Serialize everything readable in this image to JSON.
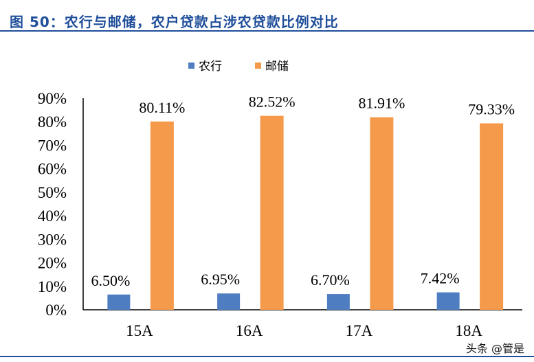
{
  "header": {
    "title": "图 50：农行与邮储，农户贷款占涉农贷款比例对比"
  },
  "watermark": "头条 @管是",
  "colors": {
    "title": "#1f4e9a",
    "series_1": "#4e7ec1",
    "series_2": "#f59a4b"
  },
  "chart_data": {
    "type": "bar",
    "categories": [
      "15A",
      "16A",
      "17A",
      "18A"
    ],
    "series": [
      {
        "name": "农行",
        "values": [
          6.5,
          6.95,
          6.7,
          7.42
        ],
        "labels": [
          "6.50%",
          "6.95%",
          "6.70%",
          "7.42%"
        ]
      },
      {
        "name": "邮储",
        "values": [
          80.11,
          82.52,
          81.91,
          79.33
        ],
        "labels": [
          "80.11%",
          "82.52%",
          "81.91%",
          "79.33%"
        ]
      }
    ],
    "yticks": [
      "0%",
      "10%",
      "20%",
      "30%",
      "40%",
      "50%",
      "60%",
      "70%",
      "80%",
      "90%"
    ],
    "ylim": [
      0,
      90
    ],
    "legend_position": "top-center",
    "grid": false
  }
}
